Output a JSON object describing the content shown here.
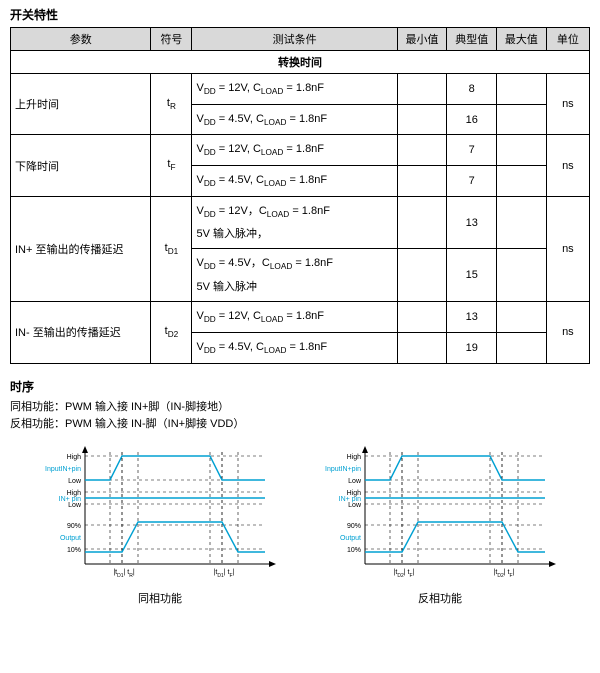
{
  "title_switching": "开关特性",
  "headers": {
    "param": "参数",
    "symbol": "符号",
    "cond": "测试条件",
    "min": "最小值",
    "typ": "典型值",
    "max": "最大值",
    "unit": "单位"
  },
  "section_switch_time": "转换时间",
  "rows": [
    {
      "param": "上升时间",
      "symbol_html": "t<span class='sub'>R</span>",
      "unit": "ns",
      "lines": [
        {
          "cond_html": "V<span class='sub'>DD</span> = 12V, C<span class='sub'>LOAD</span> = 1.8nF",
          "min": "",
          "typ": "8",
          "max": ""
        },
        {
          "cond_html": "V<span class='sub'>DD</span> = 4.5V, C<span class='sub'>LOAD</span> = 1.8nF",
          "min": "",
          "typ": "16",
          "max": ""
        }
      ]
    },
    {
      "param": "下降时间",
      "symbol_html": "t<span class='sub'>F</span>",
      "unit": "ns",
      "lines": [
        {
          "cond_html": "V<span class='sub'>DD</span> = 12V, C<span class='sub'>LOAD</span> = 1.8nF",
          "min": "",
          "typ": "7",
          "max": ""
        },
        {
          "cond_html": "V<span class='sub'>DD</span> = 4.5V, C<span class='sub'>LOAD</span> = 1.8nF",
          "min": "",
          "typ": "7",
          "max": ""
        }
      ]
    },
    {
      "param": "IN+ 至输出的传播延迟",
      "symbol_html": "t<span class='sub'>D1</span>",
      "unit": "ns",
      "lines": [
        {
          "cond_html": "V<span class='sub'>DD</span> = 12V，C<span class='sub'>LOAD</span> = 1.8nF<br>5V 输入脉冲，",
          "min": "",
          "typ": "13",
          "max": ""
        },
        {
          "cond_html": "V<span class='sub'>DD</span> = 4.5V，C<span class='sub'>LOAD</span> = 1.8nF<br>5V 输入脉冲",
          "min": "",
          "typ": "15",
          "max": ""
        }
      ]
    },
    {
      "param": "IN- 至输出的传播延迟",
      "symbol_html": "t<span class='sub'>D2</span>",
      "unit": "ns",
      "lines": [
        {
          "cond_html": "V<span class='sub'>DD</span> = 12V, C<span class='sub'>LOAD</span> = 1.8nF",
          "min": "",
          "typ": "13",
          "max": ""
        },
        {
          "cond_html": "V<span class='sub'>DD</span> = 4.5V, C<span class='sub'>LOAD</span> = 1.8nF",
          "min": "",
          "typ": "19",
          "max": ""
        }
      ]
    }
  ],
  "timing": {
    "title": "时序",
    "line1": "同相功能：PWM 输入接 IN+脚（IN-脚接地）",
    "line2": "反相功能：PWM 输入接 IN-脚（IN+脚接 VDD）",
    "diagrams": [
      {
        "caption": "同相功能",
        "input_label": "InputIN+pin",
        "mid_label": "IN+ pin",
        "output_label": "Output",
        "colors": {
          "signal": "#00a0d2",
          "label": "#00a0d2",
          "axis": "#000",
          "dash": "#000"
        },
        "levels": {
          "high": "High",
          "low": "Low",
          "p90": "90%",
          "p10": "10%"
        },
        "timing_labels": [
          "|t",
          "D1",
          "|",
          "t",
          "R",
          "|",
          "|t",
          "D1",
          "|",
          "t",
          "F",
          "|"
        ]
      },
      {
        "caption": "反相功能",
        "input_label": "InputIN+pin",
        "mid_label": "IN+ pin",
        "output_label": "Output",
        "colors": {
          "signal": "#00a0d2",
          "label": "#00a0d2",
          "axis": "#000",
          "dash": "#000"
        },
        "levels": {
          "high": "High",
          "low": "Low",
          "p90": "90%",
          "p10": "10%"
        },
        "timing_labels": [
          "|t",
          "D2",
          "|",
          "t",
          "F",
          "|",
          "|t",
          "D2",
          "|",
          "t",
          "F",
          "|"
        ]
      }
    ]
  }
}
